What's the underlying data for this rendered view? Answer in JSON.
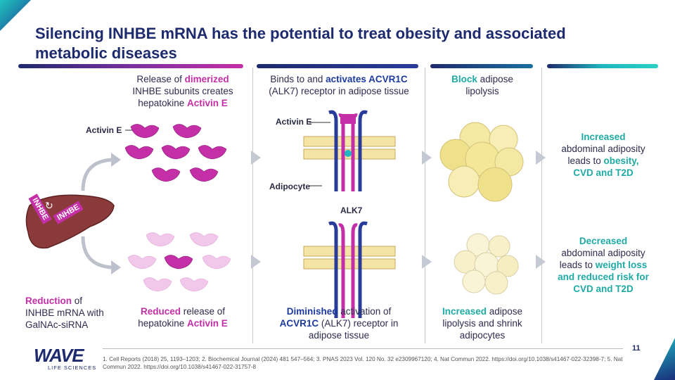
{
  "slide": {
    "title": "Silencing INHBE mRNA has the potential to treat obesity and associated metabolic diseases",
    "page_number": "11"
  },
  "col1": {
    "top_a": "Release of ",
    "top_b": "dimerized",
    "top_c": "INHBE subunits creates",
    "top_d": "hepatokine ",
    "top_e": "Activin E",
    "bottom_a": "Reduced",
    "bottom_b": " release of",
    "bottom_c": "hepatokine ",
    "bottom_d": "Activin E",
    "activin_label": "Activin E"
  },
  "liver": {
    "rna1": "INHBE",
    "rna2": "INHBE",
    "reduction_a": "Reduction",
    "reduction_b": " of",
    "reduction_c": "INHBE mRNA with",
    "reduction_d": "GalNAc-siRNA"
  },
  "col2": {
    "top_a": "Binds to and ",
    "top_b": "activates ACVR1C",
    "top_c": "(ALK7) receptor in adipose tissue",
    "activin_label": "Activin E",
    "adipocyte_label": "Adipocyte",
    "alk7_label": "ALK7",
    "bottom_a": "Diminished",
    "bottom_b": " activation of",
    "bottom_c": "ACVR1C",
    "bottom_d": " (ALK7) receptor in",
    "bottom_e": "adipose tissue"
  },
  "col3": {
    "top_a": "Block",
    "top_b": " adipose",
    "top_c": "lipolysis",
    "bottom_a": "Increased",
    "bottom_b": " adipose",
    "bottom_c": "lipolysis and shrink",
    "bottom_d": "adipocytes"
  },
  "col4": {
    "top_a": "Increased",
    "top_b": "abdominal adiposity",
    "top_c": "leads to ",
    "top_d": "obesity,",
    "top_e": "CVD and T2D",
    "bottom_a": "Decreased",
    "bottom_b": "abdominal adiposity",
    "bottom_c": "leads to ",
    "bottom_d": "weight loss",
    "bottom_e": "and reduced risk for",
    "bottom_f": "CVD and T2D"
  },
  "footer": {
    "refs": "1. Cell Reports (2018) 25, 1193–1203; 2. Biochemical Journal (2024) 481 547–564; 3. PNAS 2023 Vol. 120 No. 32 e2309967120; 4. Nat Commun 2022. https://doi.org/10.1038/s41467-022-32398-7; 5. Nat Commun 2022. https://doi.org/10.1038/s41467-022-31757-8",
    "logo_word": "WAVE",
    "logo_sub": "LIFE SCIENCES"
  },
  "colors": {
    "magenta": "#c42fa8",
    "navy": "#1e2a6e",
    "teal": "#1faaa5",
    "blue": "#1d3a9e"
  }
}
